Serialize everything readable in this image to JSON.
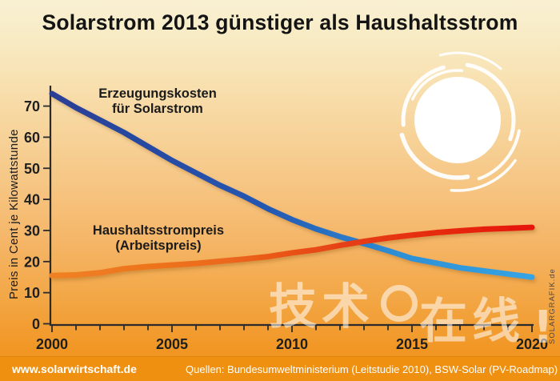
{
  "title": "Solarstrom 2013 günstiger als Haushaltsstrom",
  "ylabel": "Preis in Cent je Kilowattstunde",
  "series_labels": {
    "solar_line1": "Erzeugungskosten",
    "solar_line2": "für Solarstrom",
    "household_line1": "Haushaltsstrompreis",
    "household_line2": "(Arbeitspreis)"
  },
  "footer": {
    "site": "www.solarwirtschaft.de",
    "sources": "Quellen: Bundesumweltministerium (Leitstudie 2010), BSW-Solar (PV-Roadmap)"
  },
  "credit": "SOLARGRAFIK.de",
  "watermark": {
    "part1": "技术",
    "part2": "在线",
    "bang": "!"
  },
  "colors": {
    "background_top": "#f9f0d3",
    "background_bottom": "#ef9011",
    "footer_bar": "#ef9011",
    "axis": "#2b2b2b",
    "title_text": "#141414",
    "sun": "#ffffff",
    "solar_line_start": "#2a3e95",
    "solar_line_end": "#35a4e4",
    "household_line_start": "#f08122",
    "household_line_end": "#e61410"
  },
  "chart_data": {
    "type": "line",
    "title": "Solarstrom 2013 günstiger als Haushaltsstrom",
    "xlabel": "",
    "ylabel": "Preis in Cent je Kilowattstunde",
    "x": [
      2000,
      2001,
      2002,
      2003,
      2004,
      2005,
      2006,
      2007,
      2008,
      2009,
      2010,
      2011,
      2012,
      2013,
      2014,
      2015,
      2016,
      2017,
      2018,
      2019,
      2020
    ],
    "series": [
      {
        "name": "Erzeugungskosten für Solarstrom",
        "values": [
          74,
          69.5,
          65.5,
          61.5,
          57,
          52.5,
          48.5,
          44.5,
          41,
          37,
          33.5,
          30.5,
          28,
          25.8,
          23.5,
          21,
          19.5,
          18,
          17,
          16,
          15
        ],
        "gradient_stops": [
          [
            "0%",
            "#2a3e95"
          ],
          [
            "45%",
            "#2458b2"
          ],
          [
            "72%",
            "#2e8fd4"
          ],
          [
            "100%",
            "#35a4e4"
          ]
        ]
      },
      {
        "name": "Haushaltsstrompreis (Arbeitspreis)",
        "values": [
          15.5,
          15.7,
          16.4,
          17.7,
          18.4,
          18.9,
          19.4,
          20.1,
          20.8,
          21.6,
          22.8,
          23.8,
          25.2,
          26.5,
          27.6,
          28.5,
          29.3,
          29.9,
          30.4,
          30.7,
          31
        ],
        "gradient_stops": [
          [
            "0%",
            "#f08122"
          ],
          [
            "35%",
            "#ec6a1c"
          ],
          [
            "62%",
            "#e63e12"
          ],
          [
            "100%",
            "#e61410"
          ]
        ]
      }
    ],
    "x_ticks": [
      2000,
      2005,
      2010,
      2015,
      2020
    ],
    "y_ticks": [
      0,
      10,
      20,
      30,
      40,
      50,
      60,
      70
    ],
    "xlim": [
      2000,
      2020
    ],
    "ylim": [
      0,
      78
    ],
    "grid": false,
    "legend_position": "labels-near-lines"
  }
}
